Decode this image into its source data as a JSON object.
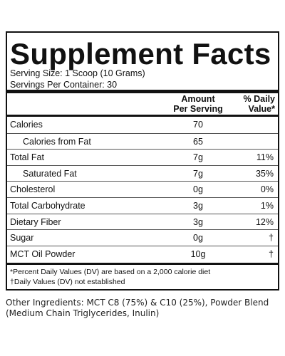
{
  "header": {
    "title": "Supplement Facts",
    "serving_size": "Serving Size: 1 Scoop (10 Grams)",
    "servings": "Servings Per Container: 30"
  },
  "table": {
    "columns": [
      "Amount\nPer Serving",
      "% Daily\nValue*"
    ],
    "rows": [
      [
        "Calories",
        "70"
      ],
      [
        "Calories from Fat",
        "65"
      ],
      [
        "Total Fat",
        "7g",
        "11%"
      ],
      [
        "Saturated Fat",
        "7g",
        "35%"
      ],
      [
        "Cholesterol",
        "0g",
        "0%"
      ],
      [
        "Total Carbohydrate",
        "3g",
        "1%"
      ],
      [
        "Dietary Fiber",
        "3g",
        "12%"
      ],
      [
        "Sugar",
        "0g",
        "†"
      ],
      [
        "MCT Oil Powder",
        "10g",
        "†"
      ]
    ]
  },
  "footnotes": [
    "*Percent Daily Values (DV) are based on a 2,000 calorie diet",
    "†Daily Values (DV) not established"
  ],
  "ingredients": [
    "Other Ingredients: MCT C8 (75%) & C10 (25%), Powder Blend",
    "(Medium Chain Triglycerides, Inulin)"
  ]
}
